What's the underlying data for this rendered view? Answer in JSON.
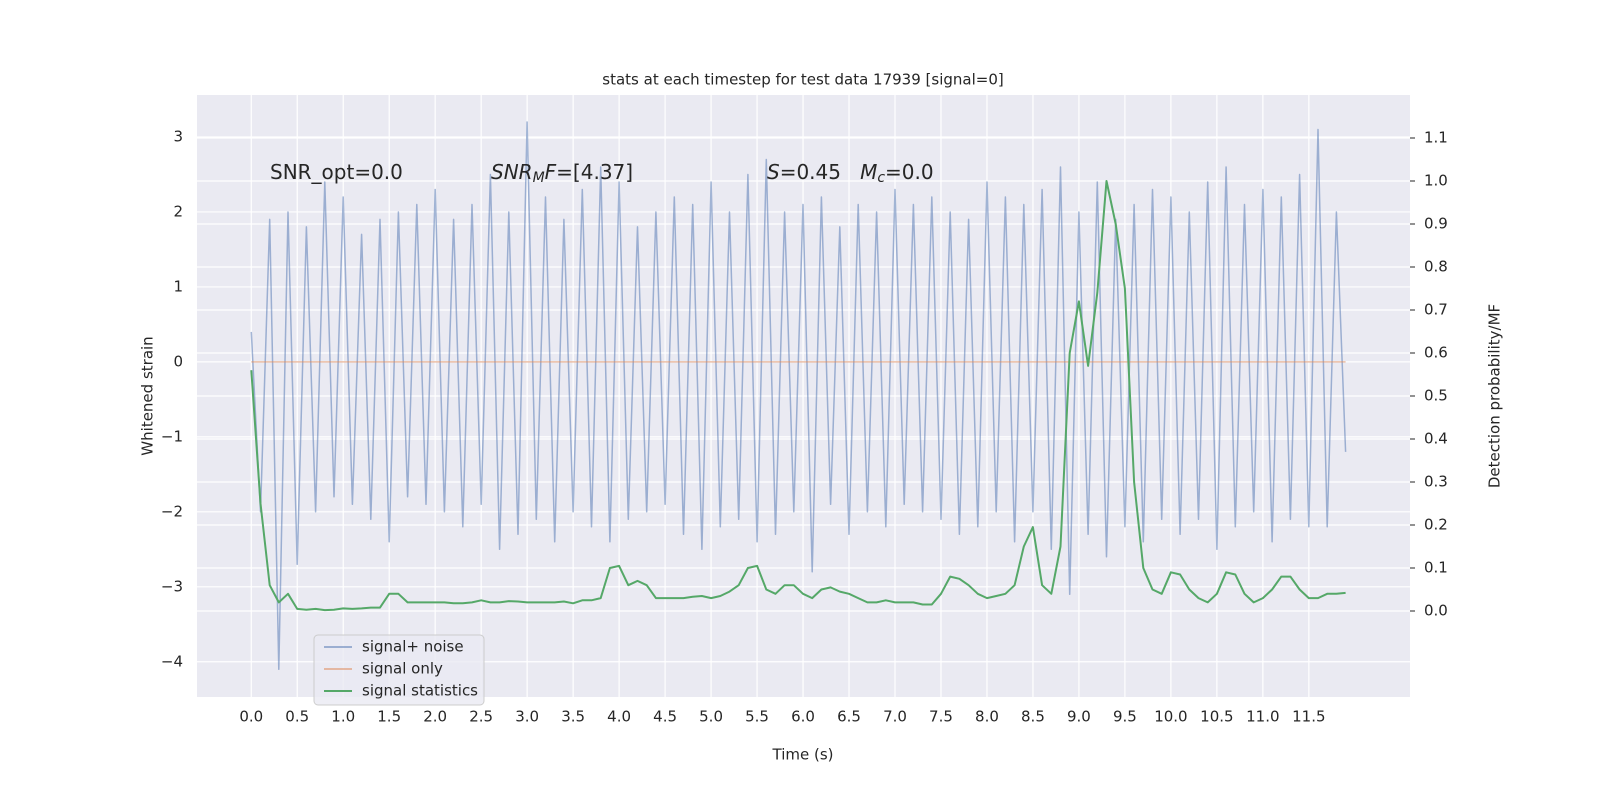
{
  "chart_data": {
    "type": "line",
    "title": "stats at each timestep for test data 17939 [signal=0]",
    "xlabel": "Time (s)",
    "ylabel": "Whitened strain",
    "y2label": "Detection probability/MF",
    "annotations": [
      [
        {
          "text": "SNR_opt=0.0"
        }
      ],
      [
        {
          "text": "SNR",
          "italic": true
        },
        {
          "text": "M",
          "italic": true,
          "sub": true
        },
        {
          "text": "F",
          "italic": true
        },
        {
          "text": "=[4.37]"
        }
      ],
      [
        {
          "text": "S",
          "italic": true
        },
        {
          "text": "=0.45   "
        },
        {
          "text": "M",
          "italic": true
        },
        {
          "text": "c",
          "italic": true,
          "sub": true
        },
        {
          "text": "=0.0"
        }
      ]
    ],
    "x": [
      0,
      0.1,
      0.2,
      0.3,
      0.4,
      0.5,
      0.6,
      0.7,
      0.8,
      0.9,
      1,
      1.1,
      1.2,
      1.3,
      1.4,
      1.5,
      1.6,
      1.7,
      1.8,
      1.9,
      2,
      2.1,
      2.2,
      2.3,
      2.4,
      2.5,
      2.6,
      2.7,
      2.8,
      2.9,
      3,
      3.1,
      3.2,
      3.3,
      3.4,
      3.5,
      3.6,
      3.7,
      3.8,
      3.9,
      4,
      4.1,
      4.2,
      4.3,
      4.4,
      4.5,
      4.6,
      4.7,
      4.8,
      4.9,
      5,
      5.1,
      5.2,
      5.3,
      5.4,
      5.5,
      5.6,
      5.7,
      5.8,
      5.9,
      6,
      6.1,
      6.2,
      6.3,
      6.4,
      6.5,
      6.6,
      6.7,
      6.8,
      6.9,
      7,
      7.1,
      7.2,
      7.3,
      7.4,
      7.5,
      7.6,
      7.7,
      7.8,
      7.9,
      8,
      8.1,
      8.2,
      8.3,
      8.4,
      8.5,
      8.6,
      8.7,
      8.8,
      8.9,
      9,
      9.1,
      9.2,
      9.3,
      9.4,
      9.5,
      9.6,
      9.7,
      9.8,
      9.9,
      10,
      10.1,
      10.2,
      10.3,
      10.4,
      10.5,
      10.6,
      10.7,
      10.8,
      10.9,
      11,
      11.1,
      11.2,
      11.3,
      11.4,
      11.5,
      11.6,
      11.7,
      11.8,
      11.9
    ],
    "series": [
      {
        "name": "signal+ noise",
        "color": "#4c72b0",
        "opacity": 0.5,
        "values": [
          0.4,
          -2.0,
          1.9,
          -4.1,
          2.0,
          -2.7,
          1.8,
          -2.0,
          2.4,
          -1.8,
          2.2,
          -1.9,
          1.7,
          -2.1,
          1.9,
          -2.4,
          2.0,
          -1.8,
          2.1,
          -1.9,
          2.3,
          -2.0,
          1.9,
          -2.2,
          2.1,
          -1.9,
          2.5,
          -2.5,
          2.0,
          -2.3,
          3.2,
          -2.1,
          2.2,
          -2.4,
          1.9,
          -2.0,
          2.3,
          -2.2,
          2.6,
          -2.4,
          2.4,
          -2.1,
          1.8,
          -2.0,
          2.0,
          -1.9,
          2.2,
          -2.3,
          2.1,
          -2.5,
          2.4,
          -2.2,
          2.0,
          -2.1,
          2.5,
          -2.4,
          2.7,
          -2.3,
          2.0,
          -2.0,
          2.1,
          -2.8,
          2.2,
          -1.9,
          1.8,
          -2.3,
          2.1,
          -2.0,
          2.0,
          -2.2,
          2.3,
          -1.9,
          2.1,
          -2.0,
          2.2,
          -2.1,
          2.0,
          -2.3,
          1.9,
          -2.2,
          2.4,
          -2.0,
          2.2,
          -2.4,
          2.1,
          -2.0,
          2.3,
          -2.5,
          2.6,
          -3.1,
          2.0,
          -2.3,
          2.4,
          -2.6,
          1.9,
          -2.2,
          2.1,
          -2.4,
          2.3,
          -2.1,
          2.2,
          -2.3,
          2.0,
          -2.1,
          2.4,
          -2.5,
          2.6,
          -2.2,
          2.1,
          -2.0,
          2.3,
          -2.4,
          2.2,
          -2.1,
          2.5,
          -2.2,
          3.1,
          -2.2,
          2.0,
          -1.2
        ]
      },
      {
        "name": "signal only",
        "color": "#dd8452",
        "opacity": 0.5,
        "values": [
          0,
          0,
          0,
          0,
          0,
          0,
          0,
          0,
          0,
          0,
          0,
          0,
          0,
          0,
          0,
          0,
          0,
          0,
          0,
          0,
          0,
          0,
          0,
          0,
          0,
          0,
          0,
          0,
          0,
          0,
          0,
          0,
          0,
          0,
          0,
          0,
          0,
          0,
          0,
          0,
          0,
          0,
          0,
          0,
          0,
          0,
          0,
          0,
          0,
          0,
          0,
          0,
          0,
          0,
          0,
          0,
          0,
          0,
          0,
          0,
          0,
          0,
          0,
          0,
          0,
          0,
          0,
          0,
          0,
          0,
          0,
          0,
          0,
          0,
          0,
          0,
          0,
          0,
          0,
          0,
          0,
          0,
          0,
          0,
          0,
          0,
          0,
          0,
          0,
          0,
          0,
          0,
          0,
          0,
          0,
          0,
          0,
          0,
          0,
          0,
          0,
          0,
          0,
          0,
          0,
          0,
          0,
          0,
          0,
          0,
          0,
          0,
          0,
          0,
          0,
          0,
          0,
          0,
          0,
          0
        ]
      },
      {
        "name": "signal statistics",
        "color": "#55a868",
        "opacity": 1,
        "axis": "y2",
        "values": [
          0.56,
          0.25,
          0.06,
          0.02,
          0.04,
          0.005,
          0.003,
          0.005,
          0.002,
          0.003,
          0.006,
          0.005,
          0.006,
          0.008,
          0.008,
          0.04,
          0.04,
          0.02,
          0.02,
          0.02,
          0.02,
          0.02,
          0.018,
          0.018,
          0.02,
          0.025,
          0.02,
          0.02,
          0.023,
          0.022,
          0.02,
          0.02,
          0.02,
          0.02,
          0.022,
          0.018,
          0.025,
          0.025,
          0.03,
          0.1,
          0.105,
          0.06,
          0.07,
          0.06,
          0.03,
          0.03,
          0.03,
          0.03,
          0.033,
          0.035,
          0.03,
          0.035,
          0.045,
          0.06,
          0.1,
          0.105,
          0.05,
          0.04,
          0.06,
          0.06,
          0.04,
          0.03,
          0.05,
          0.055,
          0.045,
          0.04,
          0.03,
          0.02,
          0.02,
          0.025,
          0.02,
          0.02,
          0.02,
          0.015,
          0.015,
          0.04,
          0.08,
          0.075,
          0.06,
          0.04,
          0.03,
          0.035,
          0.04,
          0.06,
          0.15,
          0.195,
          0.06,
          0.04,
          0.15,
          0.6,
          0.72,
          0.57,
          0.74,
          1.0,
          0.9,
          0.75,
          0.3,
          0.1,
          0.05,
          0.04,
          0.09,
          0.085,
          0.05,
          0.03,
          0.02,
          0.04,
          0.09,
          0.085,
          0.04,
          0.02,
          0.03,
          0.05,
          0.08,
          0.08,
          0.05,
          0.03,
          0.03,
          0.04,
          0.04,
          0.042
        ]
      }
    ],
    "xlim": [
      -0.59,
      12.6
    ],
    "ylim": [
      -4.47,
      3.56
    ],
    "y2lim": [
      -0.2,
      1.2
    ],
    "xticks": [
      {
        "value": 0,
        "label": "0.0"
      },
      0.5,
      {
        "value": 1,
        "label": "1.0"
      },
      1.5,
      {
        "value": 2,
        "label": "2.0"
      },
      2.5,
      {
        "value": 3,
        "label": "3.0"
      },
      3.5,
      {
        "value": 4,
        "label": "4.0"
      },
      4.5,
      {
        "value": 5,
        "label": "5.0"
      },
      5.5,
      {
        "value": 6,
        "label": "6.0"
      },
      6.5,
      {
        "value": 7,
        "label": "7.0"
      },
      7.5,
      {
        "value": 8,
        "label": "8.0"
      },
      8.5,
      {
        "value": 9,
        "label": "9.0"
      },
      9.5,
      {
        "value": 10,
        "label": "10.0"
      },
      10.5,
      {
        "value": 11,
        "label": "11.0"
      },
      11.5
    ],
    "yticks": [
      {
        "value": -4,
        "label": "−4"
      },
      {
        "value": -3,
        "label": "−3"
      },
      {
        "value": -2,
        "label": "−2"
      },
      {
        "value": -1,
        "label": "−1"
      },
      0,
      1,
      2,
      3
    ],
    "y2ticks": [
      {
        "value": 0,
        "label": "0.0"
      },
      0.1,
      0.2,
      0.3,
      0.4,
      0.5,
      0.6,
      0.7,
      0.8,
      0.9,
      {
        "value": 1,
        "label": "1.0"
      },
      1.1
    ],
    "grid": true,
    "legend": "lower left",
    "background": "#eaeaf2"
  }
}
